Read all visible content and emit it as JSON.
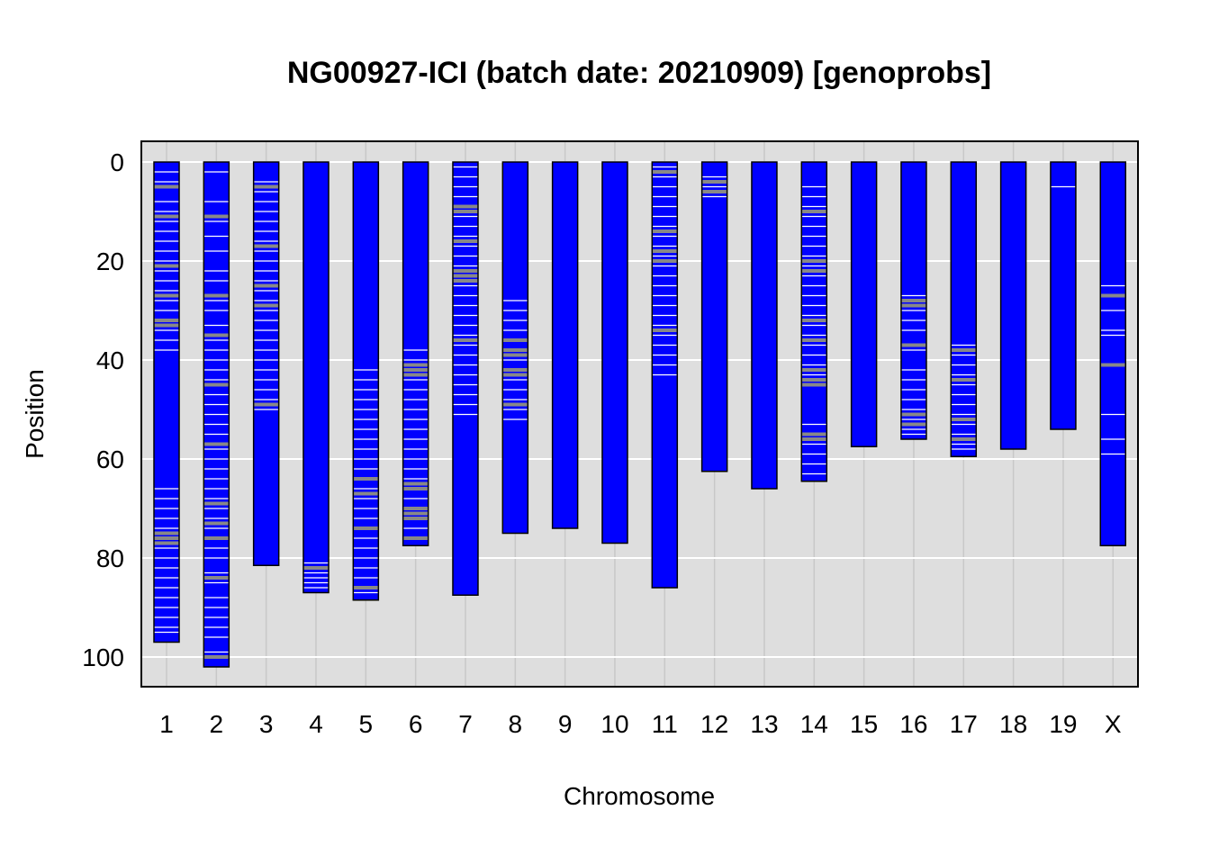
{
  "chart_data": {
    "type": "bar",
    "title": "NG00927-ICI (batch date: 20210909) [genoprobs]",
    "xlabel": "Chromosome",
    "ylabel": "Position",
    "ylim": [
      0,
      105
    ],
    "y_reversed": true,
    "yticks": [
      0,
      20,
      40,
      60,
      80,
      100
    ],
    "grid": true,
    "colors": {
      "panel_bg": "#dedede",
      "grid_major": "#ffffff",
      "grid_minor": "#c8c8c8",
      "bar_fill": "#0000ff",
      "bar_stroke": "#000000",
      "mark_white": "#ffffff",
      "mark_gray": "#888888"
    },
    "categories": [
      "1",
      "2",
      "3",
      "4",
      "5",
      "6",
      "7",
      "8",
      "9",
      "10",
      "11",
      "12",
      "13",
      "14",
      "15",
      "16",
      "17",
      "18",
      "19",
      "X"
    ],
    "values": [
      97,
      102,
      81.5,
      87,
      88.5,
      77.5,
      87.5,
      75,
      74,
      77,
      86,
      62.5,
      66,
      64.5,
      57.5,
      56,
      59.5,
      58,
      54,
      77.5
    ],
    "marks": [
      {
        "chr": "1",
        "white": [
          2,
          4,
          8,
          10,
          12,
          14,
          16,
          18,
          20,
          22,
          24,
          26,
          28,
          30,
          34,
          36,
          38,
          66,
          68,
          70,
          72,
          74,
          78,
          80,
          82,
          84,
          86,
          88,
          90,
          92,
          94,
          95
        ],
        "gray": [
          5,
          11,
          21,
          27,
          32,
          33,
          75,
          76,
          77
        ]
      },
      {
        "chr": "2",
        "white": [
          2,
          8,
          12,
          15,
          18,
          22,
          24,
          28,
          30,
          33,
          36,
          38,
          40,
          42,
          44,
          47,
          49,
          51,
          53,
          55,
          58,
          60,
          62,
          64,
          66,
          68,
          70,
          72,
          74,
          78,
          80,
          83,
          85,
          88,
          90,
          92,
          94,
          96,
          99
        ],
        "gray": [
          11,
          27,
          35,
          45,
          57,
          69,
          73,
          76,
          84,
          100
        ]
      },
      {
        "chr": "3",
        "white": [
          4,
          6,
          8,
          10,
          12,
          14,
          16,
          18,
          20,
          22,
          24,
          26,
          28,
          30,
          32,
          34,
          36,
          38,
          40,
          42,
          44,
          46,
          48,
          50
        ],
        "gray": [
          5,
          17,
          25,
          29,
          49
        ]
      },
      {
        "chr": "4",
        "white": [
          81,
          83,
          84,
          85,
          86
        ],
        "gray": [
          82
        ]
      },
      {
        "chr": "5",
        "white": [
          42,
          44,
          46,
          48,
          50,
          52,
          54,
          56,
          58,
          60,
          62,
          64,
          66,
          68,
          70,
          72,
          74,
          76,
          78,
          80,
          82,
          84,
          86,
          87
        ],
        "gray": [
          64,
          67,
          74,
          86
        ]
      },
      {
        "chr": "6",
        "white": [
          38,
          40,
          44,
          46,
          48,
          50,
          52,
          54,
          56,
          58,
          60,
          62,
          64,
          66,
          68,
          70,
          72,
          74,
          76
        ],
        "gray": [
          41,
          42,
          43,
          65,
          66,
          70,
          71,
          72,
          76
        ]
      },
      {
        "chr": "7",
        "white": [
          1,
          3,
          5,
          7,
          9,
          11,
          13,
          15,
          17,
          19,
          21,
          23,
          25,
          27,
          29,
          31,
          33,
          35,
          37,
          39,
          41,
          43,
          45,
          47,
          49,
          51
        ],
        "gray": [
          9,
          10,
          16,
          22,
          23,
          24,
          36
        ]
      },
      {
        "chr": "8",
        "white": [
          28,
          30,
          32,
          34,
          36,
          38,
          40,
          42,
          44,
          46,
          48,
          50,
          52
        ],
        "gray": [
          36,
          38,
          39,
          42,
          43,
          49
        ]
      },
      {
        "chr": "9",
        "white": [],
        "gray": []
      },
      {
        "chr": "10",
        "white": [],
        "gray": []
      },
      {
        "chr": "11",
        "white": [
          1,
          3,
          5,
          7,
          9,
          11,
          13,
          15,
          17,
          19,
          21,
          23,
          25,
          27,
          29,
          31,
          33,
          35,
          37,
          39,
          41,
          43
        ],
        "gray": [
          2,
          14,
          18,
          20,
          34
        ]
      },
      {
        "chr": "12",
        "white": [
          3,
          5,
          7
        ],
        "gray": [
          4,
          6
        ]
      },
      {
        "chr": "13",
        "white": [],
        "gray": []
      },
      {
        "chr": "14",
        "white": [
          5,
          7,
          9,
          11,
          13,
          15,
          17,
          19,
          21,
          23,
          25,
          27,
          29,
          31,
          33,
          35,
          37,
          39,
          41,
          43,
          45,
          53,
          55,
          57,
          59,
          61,
          63
        ],
        "gray": [
          10,
          20,
          22,
          32,
          36,
          42,
          44,
          45,
          55,
          56
        ]
      },
      {
        "chr": "15",
        "white": [],
        "gray": []
      },
      {
        "chr": "16",
        "white": [
          27,
          30,
          32,
          34,
          38,
          42,
          44,
          46,
          48,
          50,
          52,
          54,
          55
        ],
        "gray": [
          28,
          29,
          37,
          51,
          53
        ]
      },
      {
        "chr": "17",
        "white": [
          37,
          39,
          41,
          43,
          45,
          47,
          49,
          51,
          53,
          55,
          57,
          58
        ],
        "gray": [
          38,
          44,
          52,
          56
        ]
      },
      {
        "chr": "18",
        "white": [],
        "gray": []
      },
      {
        "chr": "19",
        "white": [
          5
        ],
        "gray": []
      },
      {
        "chr": "X",
        "white": [
          25,
          30,
          34,
          35,
          51,
          56,
          59
        ],
        "gray": [
          27,
          41
        ]
      }
    ]
  }
}
